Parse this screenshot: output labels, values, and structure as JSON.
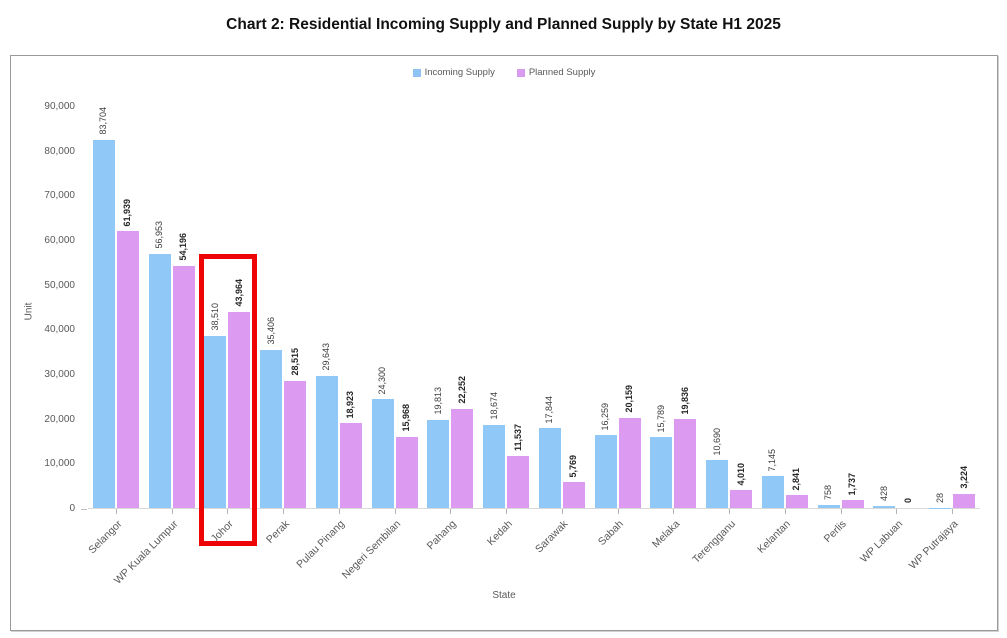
{
  "page": {
    "title": "Chart 2: Residential Incoming Supply and Planned Supply by State H1 2025"
  },
  "legend": [
    {
      "label": "Incoming Supply",
      "color": "#90c3f5"
    },
    {
      "label": "Planned Supply",
      "color": "#d89bf0"
    }
  ],
  "axes": {
    "y_title": "Unit",
    "x_title": "State"
  },
  "chart_data": {
    "type": "bar",
    "title": "Chart 2: Residential Incoming Supply and Planned Supply by State H1 2025",
    "xlabel": "State",
    "ylabel": "Unit",
    "ylim": [
      0,
      90000
    ],
    "ytick_step": 10000,
    "grid": false,
    "legend_position": "top-center",
    "categories": [
      "Selangor",
      "WP Kuala Lumpur",
      "Johor",
      "Perak",
      "Pulau Pinang",
      "Negeri Sembilan",
      "Pahang",
      "Kedah",
      "Sarawak",
      "Sabah",
      "Melaka",
      "Terengganu",
      "Kelantan",
      "Perlis",
      "WP Labuan",
      "WP Putrajaya"
    ],
    "series": [
      {
        "name": "Incoming Supply",
        "color": "#90c8f8",
        "values": [
          83704,
          56953,
          38510,
          35406,
          29643,
          24300,
          19813,
          18674,
          17844,
          16259,
          15789,
          10690,
          7145,
          758,
          428,
          28
        ]
      },
      {
        "name": "Planned Supply",
        "color": "#dc9bf0",
        "values": [
          61939,
          54196,
          43964,
          28515,
          18923,
          15968,
          22252,
          11537,
          5769,
          20159,
          19836,
          4010,
          2841,
          1737,
          0,
          3224
        ]
      }
    ],
    "annotations": {
      "highlight": {
        "category": "Johor",
        "color": "#ee0404"
      }
    }
  }
}
